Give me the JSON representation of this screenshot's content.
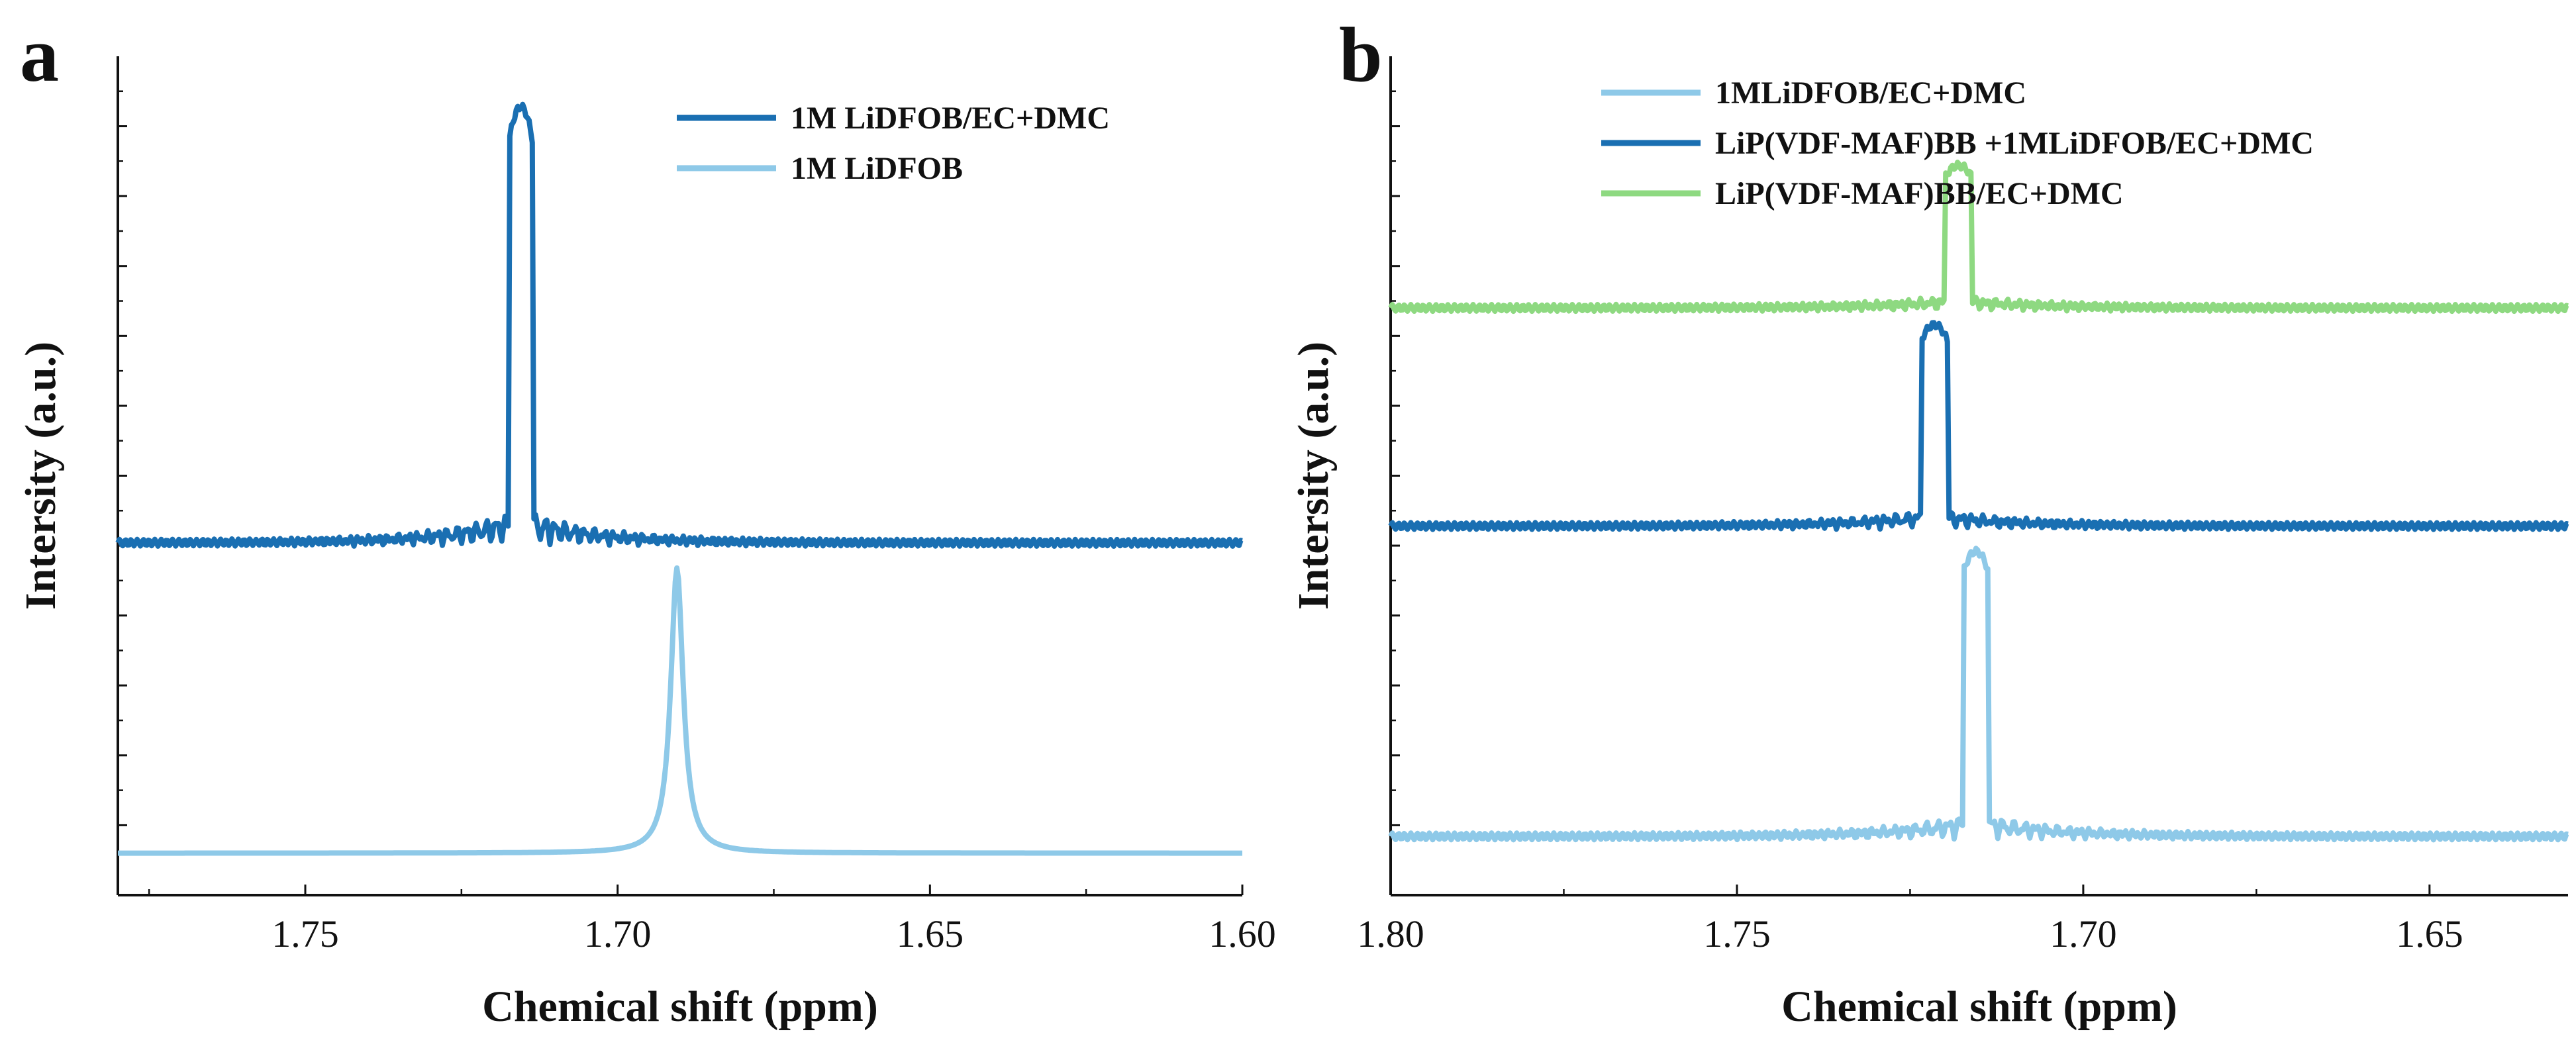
{
  "chart_data": [
    {
      "type": "line",
      "panel_label": "a",
      "xlabel": "Chemical shift (ppm)",
      "ylabel": "Intersity (a.u.)",
      "xlim": [
        1.78,
        1.6
      ],
      "xreversed": true,
      "ylim": [
        0,
        1
      ],
      "yticks_labeled": false,
      "xticks": [
        1.75,
        1.7,
        1.65,
        1.6
      ],
      "xtick_labels": [
        "1.75",
        "1.70",
        "1.65",
        "1.60"
      ],
      "legend_position": "top-right",
      "series": [
        {
          "name": "1M LiDFOB/EC+DMC",
          "color": "#1a6fb2",
          "peak_position": 1.7155,
          "baseline": 0.42,
          "peak_height": 0.52,
          "shape": "truncated-fid"
        },
        {
          "name": "1M LiDFOB",
          "color": "#8ec9e8",
          "peak_position": 1.6905,
          "baseline": 0.05,
          "peak_height": 0.34,
          "shape": "lorentzian"
        }
      ]
    },
    {
      "type": "line",
      "panel_label": "b",
      "xlabel": "Chemical shift (ppm)",
      "ylabel": "Intersity (a.u.)",
      "xlim": [
        1.8,
        1.63
      ],
      "xreversed": true,
      "ylim": [
        0,
        1
      ],
      "yticks_labeled": false,
      "xticks": [
        1.8,
        1.75,
        1.7,
        1.65
      ],
      "xtick_labels": [
        "1.80",
        "1.75",
        "1.70",
        "1.65"
      ],
      "legend_position": "top-left",
      "series": [
        {
          "name": "1MLiDFOB/EC+DMC",
          "color": "#8ec9e8",
          "peak_position": 1.7155,
          "baseline": 0.07,
          "peak_height": 0.34,
          "shape": "truncated-fid"
        },
        {
          "name": "LiP(VDF-MAF)BB +1MLiDFOB/EC+DMC",
          "color": "#1a6fb2",
          "peak_position": 1.7215,
          "baseline": 0.44,
          "peak_height": 0.24,
          "shape": "truncated-fid"
        },
        {
          "name": "LiP(VDF-MAF)BB/EC+DMC",
          "color": "#8ed981",
          "peak_position": 1.718,
          "baseline": 0.7,
          "peak_height": 0.17,
          "shape": "truncated-fid"
        }
      ]
    }
  ]
}
